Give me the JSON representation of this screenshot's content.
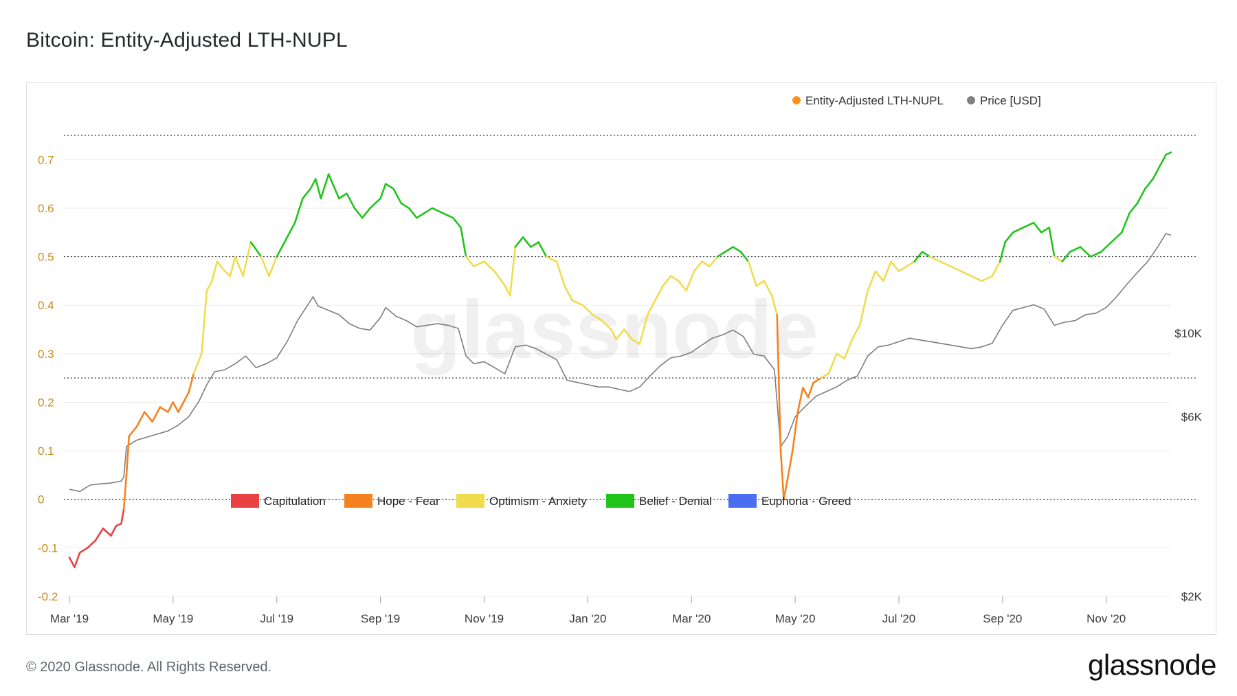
{
  "title": "Bitcoin: Entity-Adjusted LTH-NUPL",
  "footer": "© 2020 Glassnode. All Rights Reserved.",
  "brand": "glassnode",
  "watermark": "glassnode",
  "chart_data": {
    "type": "line",
    "legend_top": [
      {
        "label": "Entity-Adjusted LTH-NUPL",
        "color": "#f7931a"
      },
      {
        "label": "Price [USD]",
        "color": "#808080"
      }
    ],
    "legend_bottom": [
      {
        "label": "Capitulation",
        "color": "#e84141"
      },
      {
        "label": "Hope - Fear",
        "color": "#f5821f"
      },
      {
        "label": "Optimism - Anxiety",
        "color": "#f1dc4d"
      },
      {
        "label": "Belief - Denial",
        "color": "#21c41b"
      },
      {
        "label": "Euphoria - Greed",
        "color": "#4b6ef0"
      }
    ],
    "zone_thresholds": [
      0,
      0.25,
      0.5,
      0.75
    ],
    "x_ticks": [
      "Mar '19",
      "May '19",
      "Jul '19",
      "Sep '19",
      "Nov '19",
      "Jan '20",
      "Mar '20",
      "May '20",
      "Jul '20",
      "Sep '20",
      "Nov '20"
    ],
    "y_left": {
      "ticks": [
        "-0.2",
        "-0.1",
        "0",
        "0.1",
        "0.2",
        "0.3",
        "0.4",
        "0.5",
        "0.6",
        "0.7"
      ],
      "range": [
        -0.2,
        0.75
      ],
      "color": "#c98a1b"
    },
    "y_right": {
      "ticks": [
        "$2K",
        "$6K",
        "$10K"
      ],
      "scale": "log"
    },
    "x_range_months": [
      0,
      20.8
    ],
    "nupl_series": [
      [
        0.0,
        -0.12
      ],
      [
        0.1,
        -0.14
      ],
      [
        0.2,
        -0.11
      ],
      [
        0.35,
        -0.1
      ],
      [
        0.5,
        -0.085
      ],
      [
        0.65,
        -0.06
      ],
      [
        0.8,
        -0.075
      ],
      [
        0.9,
        -0.055
      ],
      [
        1.0,
        -0.05
      ],
      [
        1.05,
        -0.02
      ],
      [
        1.1,
        0.05
      ],
      [
        1.15,
        0.13
      ],
      [
        1.3,
        0.15
      ],
      [
        1.45,
        0.18
      ],
      [
        1.6,
        0.16
      ],
      [
        1.75,
        0.19
      ],
      [
        1.9,
        0.18
      ],
      [
        2.0,
        0.2
      ],
      [
        2.1,
        0.18
      ],
      [
        2.2,
        0.2
      ],
      [
        2.3,
        0.22
      ],
      [
        2.4,
        0.26
      ],
      [
        2.55,
        0.3
      ],
      [
        2.65,
        0.43
      ],
      [
        2.75,
        0.45
      ],
      [
        2.85,
        0.49
      ],
      [
        3.0,
        0.47
      ],
      [
        3.1,
        0.46
      ],
      [
        3.2,
        0.5
      ],
      [
        3.35,
        0.46
      ],
      [
        3.5,
        0.53
      ],
      [
        3.7,
        0.5
      ],
      [
        3.85,
        0.46
      ],
      [
        4.0,
        0.5
      ],
      [
        4.2,
        0.54
      ],
      [
        4.35,
        0.57
      ],
      [
        4.5,
        0.62
      ],
      [
        4.65,
        0.64
      ],
      [
        4.75,
        0.66
      ],
      [
        4.85,
        0.62
      ],
      [
        5.0,
        0.67
      ],
      [
        5.2,
        0.62
      ],
      [
        5.35,
        0.63
      ],
      [
        5.5,
        0.6
      ],
      [
        5.65,
        0.58
      ],
      [
        5.8,
        0.6
      ],
      [
        6.0,
        0.62
      ],
      [
        6.1,
        0.65
      ],
      [
        6.25,
        0.64
      ],
      [
        6.4,
        0.61
      ],
      [
        6.55,
        0.6
      ],
      [
        6.7,
        0.58
      ],
      [
        6.85,
        0.59
      ],
      [
        7.0,
        0.6
      ],
      [
        7.2,
        0.59
      ],
      [
        7.4,
        0.58
      ],
      [
        7.55,
        0.56
      ],
      [
        7.65,
        0.5
      ],
      [
        7.8,
        0.48
      ],
      [
        8.0,
        0.49
      ],
      [
        8.2,
        0.47
      ],
      [
        8.4,
        0.44
      ],
      [
        8.5,
        0.42
      ],
      [
        8.6,
        0.52
      ],
      [
        8.75,
        0.54
      ],
      [
        8.9,
        0.52
      ],
      [
        9.05,
        0.53
      ],
      [
        9.2,
        0.5
      ],
      [
        9.4,
        0.49
      ],
      [
        9.55,
        0.44
      ],
      [
        9.7,
        0.41
      ],
      [
        9.9,
        0.4
      ],
      [
        10.1,
        0.38
      ],
      [
        10.25,
        0.37
      ],
      [
        10.45,
        0.35
      ],
      [
        10.55,
        0.33
      ],
      [
        10.7,
        0.35
      ],
      [
        10.85,
        0.33
      ],
      [
        11.0,
        0.32
      ],
      [
        11.15,
        0.38
      ],
      [
        11.3,
        0.41
      ],
      [
        11.45,
        0.44
      ],
      [
        11.6,
        0.46
      ],
      [
        11.75,
        0.45
      ],
      [
        11.9,
        0.43
      ],
      [
        12.05,
        0.47
      ],
      [
        12.2,
        0.49
      ],
      [
        12.35,
        0.48
      ],
      [
        12.5,
        0.5
      ],
      [
        12.65,
        0.51
      ],
      [
        12.8,
        0.52
      ],
      [
        12.95,
        0.51
      ],
      [
        13.1,
        0.49
      ],
      [
        13.25,
        0.44
      ],
      [
        13.4,
        0.45
      ],
      [
        13.55,
        0.42
      ],
      [
        13.65,
        0.38
      ],
      [
        13.72,
        0.1
      ],
      [
        13.78,
        0.0
      ],
      [
        13.85,
        0.04
      ],
      [
        13.95,
        0.1
      ],
      [
        14.05,
        0.18
      ],
      [
        14.15,
        0.23
      ],
      [
        14.25,
        0.21
      ],
      [
        14.35,
        0.24
      ],
      [
        14.5,
        0.25
      ],
      [
        14.65,
        0.26
      ],
      [
        14.8,
        0.3
      ],
      [
        14.95,
        0.29
      ],
      [
        15.1,
        0.33
      ],
      [
        15.25,
        0.36
      ],
      [
        15.4,
        0.43
      ],
      [
        15.55,
        0.47
      ],
      [
        15.7,
        0.45
      ],
      [
        15.85,
        0.49
      ],
      [
        16.0,
        0.47
      ],
      [
        16.15,
        0.48
      ],
      [
        16.3,
        0.49
      ],
      [
        16.45,
        0.51
      ],
      [
        16.6,
        0.5
      ],
      [
        16.8,
        0.49
      ],
      [
        17.0,
        0.48
      ],
      [
        17.2,
        0.47
      ],
      [
        17.4,
        0.46
      ],
      [
        17.6,
        0.45
      ],
      [
        17.8,
        0.46
      ],
      [
        17.95,
        0.49
      ],
      [
        18.05,
        0.53
      ],
      [
        18.2,
        0.55
      ],
      [
        18.4,
        0.56
      ],
      [
        18.6,
        0.57
      ],
      [
        18.75,
        0.55
      ],
      [
        18.9,
        0.56
      ],
      [
        19.0,
        0.5
      ],
      [
        19.15,
        0.49
      ],
      [
        19.3,
        0.51
      ],
      [
        19.5,
        0.52
      ],
      [
        19.7,
        0.5
      ],
      [
        19.9,
        0.51
      ],
      [
        20.1,
        0.53
      ],
      [
        20.3,
        0.55
      ],
      [
        20.45,
        0.59
      ],
      [
        20.6,
        0.61
      ],
      [
        20.75,
        0.64
      ],
      [
        20.9,
        0.66
      ],
      [
        21.05,
        0.69
      ],
      [
        21.15,
        0.71
      ],
      [
        21.25,
        0.715
      ]
    ],
    "price_series": [
      [
        0.0,
        3850
      ],
      [
        0.2,
        3800
      ],
      [
        0.4,
        3950
      ],
      [
        0.6,
        3980
      ],
      [
        0.8,
        4000
      ],
      [
        1.0,
        4050
      ],
      [
        1.05,
        4150
      ],
      [
        1.1,
        5000
      ],
      [
        1.3,
        5200
      ],
      [
        1.5,
        5300
      ],
      [
        1.7,
        5400
      ],
      [
        1.9,
        5500
      ],
      [
        2.1,
        5700
      ],
      [
        2.3,
        6000
      ],
      [
        2.5,
        6600
      ],
      [
        2.65,
        7300
      ],
      [
        2.8,
        7900
      ],
      [
        3.0,
        8000
      ],
      [
        3.2,
        8300
      ],
      [
        3.4,
        8700
      ],
      [
        3.6,
        8100
      ],
      [
        3.8,
        8300
      ],
      [
        4.0,
        8600
      ],
      [
        4.2,
        9500
      ],
      [
        4.4,
        10800
      ],
      [
        4.6,
        11900
      ],
      [
        4.7,
        12500
      ],
      [
        4.8,
        11800
      ],
      [
        5.0,
        11500
      ],
      [
        5.2,
        11200
      ],
      [
        5.4,
        10600
      ],
      [
        5.6,
        10300
      ],
      [
        5.8,
        10200
      ],
      [
        6.0,
        11000
      ],
      [
        6.1,
        11700
      ],
      [
        6.3,
        11100
      ],
      [
        6.5,
        10800
      ],
      [
        6.7,
        10400
      ],
      [
        6.9,
        10500
      ],
      [
        7.1,
        10600
      ],
      [
        7.3,
        10500
      ],
      [
        7.5,
        10300
      ],
      [
        7.65,
        8700
      ],
      [
        7.8,
        8300
      ],
      [
        8.0,
        8400
      ],
      [
        8.2,
        8100
      ],
      [
        8.4,
        7800
      ],
      [
        8.6,
        9200
      ],
      [
        8.8,
        9300
      ],
      [
        9.0,
        9100
      ],
      [
        9.2,
        8800
      ],
      [
        9.4,
        8500
      ],
      [
        9.6,
        7500
      ],
      [
        9.8,
        7400
      ],
      [
        10.0,
        7300
      ],
      [
        10.2,
        7200
      ],
      [
        10.4,
        7200
      ],
      [
        10.6,
        7100
      ],
      [
        10.8,
        7000
      ],
      [
        11.0,
        7200
      ],
      [
        11.2,
        7700
      ],
      [
        11.4,
        8200
      ],
      [
        11.6,
        8600
      ],
      [
        11.8,
        8700
      ],
      [
        12.0,
        8900
      ],
      [
        12.2,
        9300
      ],
      [
        12.4,
        9700
      ],
      [
        12.6,
        9900
      ],
      [
        12.8,
        10200
      ],
      [
        13.0,
        9800
      ],
      [
        13.2,
        8800
      ],
      [
        13.4,
        8700
      ],
      [
        13.6,
        8000
      ],
      [
        13.72,
        5000
      ],
      [
        13.85,
        5300
      ],
      [
        14.0,
        6000
      ],
      [
        14.2,
        6400
      ],
      [
        14.4,
        6800
      ],
      [
        14.6,
        7000
      ],
      [
        14.8,
        7200
      ],
      [
        15.0,
        7500
      ],
      [
        15.2,
        7700
      ],
      [
        15.4,
        8700
      ],
      [
        15.6,
        9200
      ],
      [
        15.8,
        9300
      ],
      [
        16.0,
        9500
      ],
      [
        16.2,
        9700
      ],
      [
        16.4,
        9600
      ],
      [
        16.6,
        9500
      ],
      [
        16.8,
        9400
      ],
      [
        17.0,
        9300
      ],
      [
        17.2,
        9200
      ],
      [
        17.4,
        9100
      ],
      [
        17.6,
        9200
      ],
      [
        17.8,
        9400
      ],
      [
        18.0,
        10500
      ],
      [
        18.2,
        11500
      ],
      [
        18.4,
        11700
      ],
      [
        18.6,
        11900
      ],
      [
        18.8,
        11600
      ],
      [
        19.0,
        10500
      ],
      [
        19.2,
        10700
      ],
      [
        19.4,
        10800
      ],
      [
        19.6,
        11200
      ],
      [
        19.8,
        11300
      ],
      [
        20.0,
        11700
      ],
      [
        20.2,
        12500
      ],
      [
        20.4,
        13500
      ],
      [
        20.6,
        14500
      ],
      [
        20.8,
        15500
      ],
      [
        21.0,
        17000
      ],
      [
        21.15,
        18400
      ],
      [
        21.25,
        18200
      ]
    ]
  }
}
